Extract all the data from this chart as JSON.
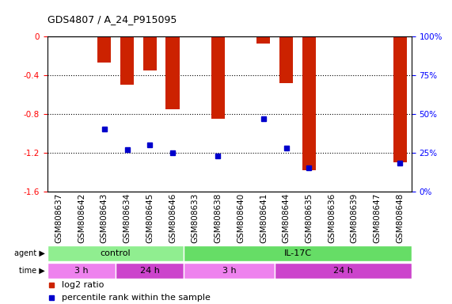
{
  "title": "GDS4807 / A_24_P915095",
  "samples": [
    "GSM808637",
    "GSM808642",
    "GSM808643",
    "GSM808634",
    "GSM808645",
    "GSM808646",
    "GSM808633",
    "GSM808638",
    "GSM808640",
    "GSM808641",
    "GSM808644",
    "GSM808635",
    "GSM808636",
    "GSM808639",
    "GSM808647",
    "GSM808648"
  ],
  "log2_ratio": [
    0,
    0,
    -0.27,
    -0.5,
    -0.35,
    -0.75,
    0,
    -0.85,
    0,
    -0.07,
    -0.48,
    -1.38,
    0,
    0,
    0,
    -1.3
  ],
  "percentile": [
    null,
    null,
    40,
    27,
    30,
    25,
    null,
    23,
    null,
    47,
    28,
    15,
    null,
    null,
    null,
    18
  ],
  "ylim_left": [
    -1.6,
    0
  ],
  "ylim_right": [
    0,
    100
  ],
  "agent_groups": [
    {
      "label": "control",
      "start": 0,
      "end": 6,
      "color": "#90ee90"
    },
    {
      "label": "IL-17C",
      "start": 6,
      "end": 16,
      "color": "#66dd66"
    }
  ],
  "time_groups": [
    {
      "label": "3 h",
      "start": 0,
      "end": 3,
      "color": "#ee82ee"
    },
    {
      "label": "24 h",
      "start": 3,
      "end": 6,
      "color": "#cc44cc"
    },
    {
      "label": "3 h",
      "start": 6,
      "end": 10,
      "color": "#ee82ee"
    },
    {
      "label": "24 h",
      "start": 10,
      "end": 16,
      "color": "#cc44cc"
    }
  ],
  "bar_color": "#cc2200",
  "blue_color": "#0000cc",
  "bg_color": "#ffffff",
  "yticks_left": [
    0,
    -0.4,
    -0.8,
    -1.2,
    -1.6
  ],
  "yticks_right": [
    0,
    25,
    50,
    75,
    100
  ],
  "label_fontsize": 7.5,
  "tick_fontsize": 7.5
}
